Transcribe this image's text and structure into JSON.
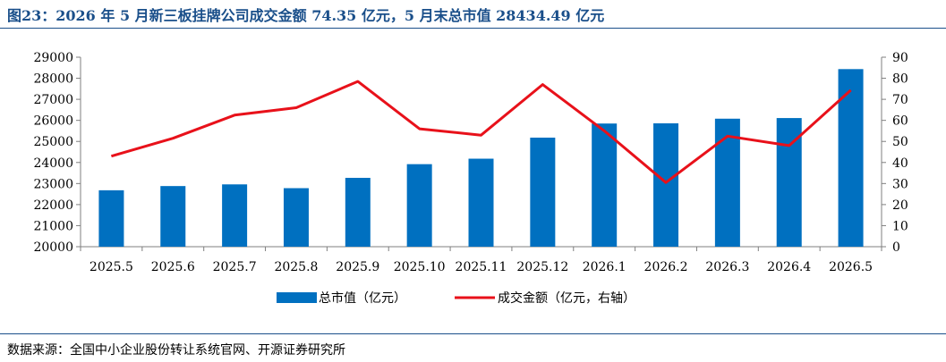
{
  "header": {
    "title": "图23：2026 年 5 月新三板挂牌公司成交金额 74.35 亿元，5 月末总市值 28434.49 亿元"
  },
  "footer": {
    "source": "数据来源：全国中小企业股份转让系统官网、开源证券研究所"
  },
  "colors": {
    "bar": "#0070c0",
    "line": "#e8111a",
    "title": "#1a4f8a"
  },
  "chart_data": {
    "type": "bar",
    "categories": [
      "2025.5",
      "2025.6",
      "2025.7",
      "2025.8",
      "2025.9",
      "2025.10",
      "2025.11",
      "2025.12",
      "2026.1",
      "2026.2",
      "2026.3",
      "2026.4",
      "2026.5"
    ],
    "series": [
      {
        "name": "总市值（亿元）",
        "type": "bar",
        "axis": "left",
        "values": [
          22680,
          22880,
          22960,
          22780,
          23270,
          23920,
          24180,
          25180,
          25850,
          25860,
          26080,
          26110,
          28434.49
        ]
      },
      {
        "name": "成交金额（亿元，右轴）",
        "type": "line",
        "axis": "right",
        "values": [
          43,
          51.5,
          62.5,
          66,
          78.5,
          56,
          53,
          77,
          55,
          30.5,
          52.5,
          48,
          74.35
        ]
      }
    ],
    "y_left": {
      "ylim": [
        20000,
        29000
      ],
      "ticks": [
        "20000",
        "21000",
        "22000",
        "23000",
        "24000",
        "25000",
        "26000",
        "27000",
        "28000",
        "29000"
      ]
    },
    "y_right": {
      "ylim": [
        0,
        90
      ],
      "ticks": [
        "0",
        "10",
        "20",
        "30",
        "40",
        "50",
        "60",
        "70",
        "80",
        "90"
      ]
    },
    "legend": {
      "position": "bottom",
      "items": [
        "总市值（亿元）",
        "成交金额（亿元，右轴）"
      ]
    },
    "grid": false
  }
}
